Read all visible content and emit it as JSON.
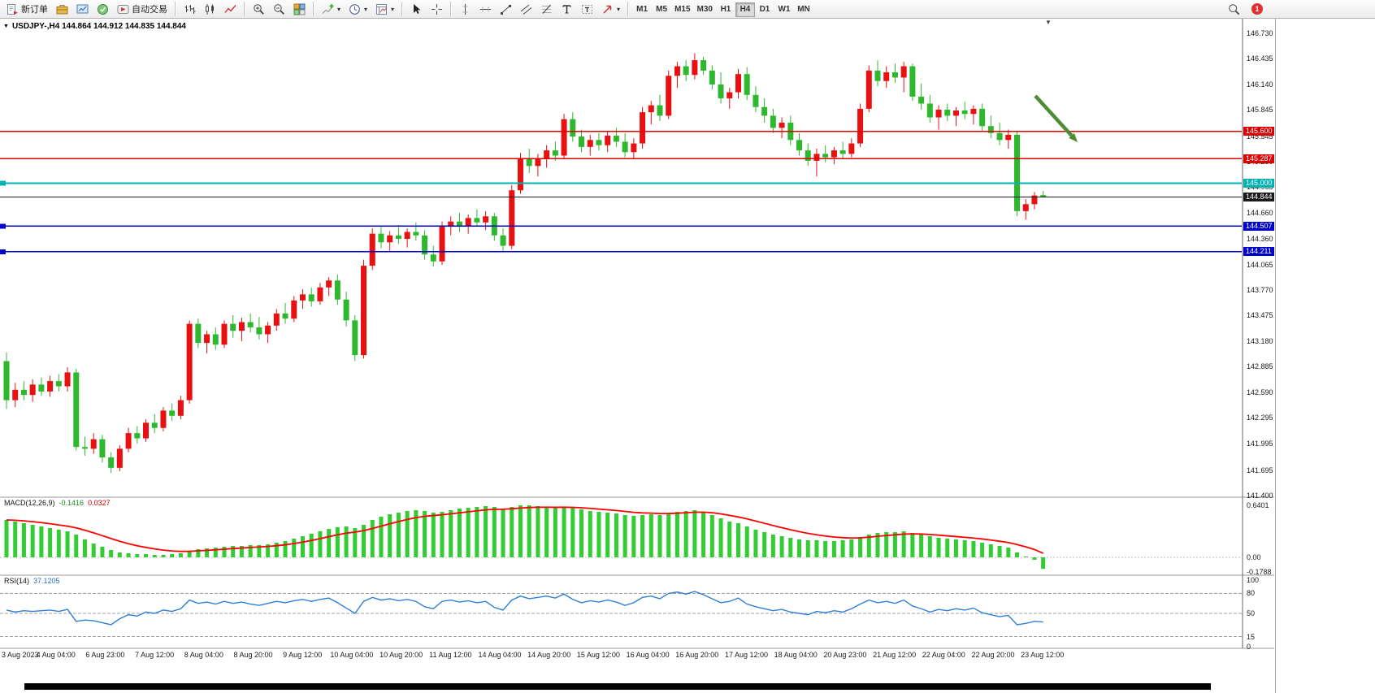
{
  "toolbar": {
    "new_order_label": "新订单",
    "auto_trading_label": "自动交易",
    "timeframes": [
      "M1",
      "M5",
      "M15",
      "M30",
      "H1",
      "H4",
      "D1",
      "W1",
      "MN"
    ],
    "active_timeframe": "H4",
    "notification_count": "1"
  },
  "chart": {
    "title": "USDJPY-,H4 144.864 144.912 144.835 144.844",
    "price_range": {
      "max": 146.73,
      "min": 141.4
    },
    "y_axis_labels": [
      "146.730",
      "146.435",
      "146.140",
      "145.845",
      "145.545",
      "145.250",
      "144.955",
      "144.660",
      "144.360",
      "144.065",
      "143.770",
      "143.475",
      "143.180",
      "142.885",
      "142.590",
      "142.295",
      "141.995",
      "141.695",
      "141.400"
    ],
    "x_axis_labels": [
      "3 Aug 2023",
      "4 Aug 04:00",
      "6 Aug 23:00",
      "7 Aug 12:00",
      "8 Aug 04:00",
      "8 Aug 20:00",
      "9 Aug 12:00",
      "10 Aug 04:00",
      "10 Aug 20:00",
      "11 Aug 12:00",
      "14 Aug 04:00",
      "14 Aug 20:00",
      "15 Aug 12:00",
      "16 Aug 04:00",
      "16 Aug 20:00",
      "17 Aug 12:00",
      "18 Aug 04:00",
      "20 Aug 23:00",
      "21 Aug 12:00",
      "22 Aug 04:00",
      "22 Aug 20:00",
      "23 Aug 12:00"
    ],
    "horizontal_lines": [
      {
        "label": "145.600",
        "price": 145.6,
        "color": "#dd0000",
        "width": 1.5
      },
      {
        "label": "145.287",
        "price": 145.287,
        "color": "#dd0000",
        "width": 1.5
      },
      {
        "label": "145.000",
        "price": 145.0,
        "color": "#00b3b3",
        "width": 2,
        "left_marker": true
      },
      {
        "label": "144.844",
        "price": 144.844,
        "color": "#1a1a1a",
        "width": 1
      },
      {
        "label": "144.507",
        "price": 144.507,
        "color": "#0000cc",
        "width": 1.5,
        "left_marker": true
      },
      {
        "label": "144.211",
        "price": 144.211,
        "color": "#0000cc",
        "width": 1.5,
        "left_marker": true
      }
    ],
    "bull_color": "#e81010",
    "bear_color": "#2eb82e",
    "annotation_arrow": {
      "color": "#4e8c33"
    },
    "candles": [
      [
        142.95,
        143.05,
        142.4,
        142.5
      ],
      [
        142.5,
        142.7,
        142.42,
        142.62
      ],
      [
        142.62,
        142.72,
        142.5,
        142.56
      ],
      [
        142.56,
        142.74,
        142.48,
        142.68
      ],
      [
        142.68,
        142.76,
        142.55,
        142.6
      ],
      [
        142.6,
        142.78,
        142.54,
        142.72
      ],
      [
        142.72,
        142.8,
        142.6,
        142.66
      ],
      [
        142.66,
        142.88,
        142.6,
        142.82
      ],
      [
        142.82,
        142.86,
        141.92,
        141.96
      ],
      [
        141.96,
        142.08,
        141.86,
        141.94
      ],
      [
        141.94,
        142.12,
        141.88,
        142.05
      ],
      [
        142.05,
        142.1,
        141.78,
        141.84
      ],
      [
        141.84,
        141.9,
        141.66,
        141.72
      ],
      [
        141.72,
        141.98,
        141.68,
        141.94
      ],
      [
        141.94,
        142.18,
        141.9,
        142.12
      ],
      [
        142.12,
        142.2,
        142.0,
        142.06
      ],
      [
        142.06,
        142.28,
        142.02,
        142.24
      ],
      [
        142.24,
        142.34,
        142.12,
        142.18
      ],
      [
        142.18,
        142.42,
        142.14,
        142.38
      ],
      [
        142.38,
        142.46,
        142.26,
        142.32
      ],
      [
        142.32,
        142.55,
        142.28,
        142.5
      ],
      [
        142.5,
        143.42,
        142.46,
        143.38
      ],
      [
        143.38,
        143.44,
        143.1,
        143.16
      ],
      [
        143.16,
        143.3,
        143.04,
        143.26
      ],
      [
        143.26,
        143.34,
        143.08,
        143.14
      ],
      [
        143.14,
        143.42,
        143.1,
        143.38
      ],
      [
        143.38,
        143.48,
        143.22,
        143.3
      ],
      [
        143.3,
        143.45,
        143.18,
        143.4
      ],
      [
        143.4,
        143.5,
        143.28,
        143.34
      ],
      [
        143.34,
        143.46,
        143.2,
        143.26
      ],
      [
        143.26,
        143.4,
        143.16,
        143.36
      ],
      [
        143.36,
        143.55,
        143.3,
        143.5
      ],
      [
        143.5,
        143.62,
        143.38,
        143.44
      ],
      [
        143.44,
        143.7,
        143.4,
        143.65
      ],
      [
        143.65,
        143.78,
        143.55,
        143.72
      ],
      [
        143.72,
        143.8,
        143.58,
        143.64
      ],
      [
        143.64,
        143.85,
        143.6,
        143.8
      ],
      [
        143.8,
        143.92,
        143.7,
        143.88
      ],
      [
        143.88,
        143.95,
        143.6,
        143.66
      ],
      [
        143.66,
        143.75,
        143.35,
        143.42
      ],
      [
        143.42,
        143.48,
        142.95,
        143.02
      ],
      [
        143.02,
        144.12,
        142.98,
        144.05
      ],
      [
        144.05,
        144.48,
        144.0,
        144.42
      ],
      [
        144.42,
        144.5,
        144.25,
        144.32
      ],
      [
        144.32,
        144.45,
        144.22,
        144.4
      ],
      [
        144.4,
        144.52,
        144.3,
        144.36
      ],
      [
        144.36,
        144.48,
        144.26,
        144.44
      ],
      [
        144.44,
        144.55,
        144.34,
        144.4
      ],
      [
        144.4,
        144.46,
        144.12,
        144.18
      ],
      [
        144.18,
        144.28,
        144.04,
        144.1
      ],
      [
        144.1,
        144.56,
        144.06,
        144.5
      ],
      [
        144.5,
        144.62,
        144.4,
        144.56
      ],
      [
        144.56,
        144.66,
        144.44,
        144.5
      ],
      [
        144.5,
        144.64,
        144.42,
        144.6
      ],
      [
        144.6,
        144.7,
        144.5,
        144.55
      ],
      [
        144.55,
        144.68,
        144.46,
        144.62
      ],
      [
        144.62,
        144.66,
        144.34,
        144.4
      ],
      [
        144.4,
        144.48,
        144.22,
        144.28
      ],
      [
        144.28,
        144.98,
        144.24,
        144.92
      ],
      [
        144.92,
        145.35,
        144.88,
        145.28
      ],
      [
        145.28,
        145.4,
        145.12,
        145.2
      ],
      [
        145.2,
        145.34,
        145.08,
        145.28
      ],
      [
        145.28,
        145.44,
        145.18,
        145.38
      ],
      [
        145.38,
        145.48,
        145.26,
        145.32
      ],
      [
        145.32,
        145.8,
        145.28,
        145.74
      ],
      [
        145.74,
        145.82,
        145.48,
        145.54
      ],
      [
        145.54,
        145.62,
        145.36,
        145.42
      ],
      [
        145.42,
        145.56,
        145.32,
        145.5
      ],
      [
        145.5,
        145.58,
        145.38,
        145.44
      ],
      [
        145.44,
        145.6,
        145.36,
        145.55
      ],
      [
        145.55,
        145.64,
        145.42,
        145.48
      ],
      [
        145.48,
        145.58,
        145.3,
        145.36
      ],
      [
        145.36,
        145.52,
        145.28,
        145.46
      ],
      [
        145.46,
        145.88,
        145.4,
        145.82
      ],
      [
        145.82,
        145.95,
        145.68,
        145.9
      ],
      [
        145.9,
        146.02,
        145.72,
        145.78
      ],
      [
        145.78,
        146.3,
        145.74,
        146.24
      ],
      [
        146.24,
        146.4,
        146.1,
        146.35
      ],
      [
        146.35,
        146.42,
        146.18,
        146.25
      ],
      [
        146.25,
        146.5,
        146.2,
        146.42
      ],
      [
        146.42,
        146.46,
        146.25,
        146.3
      ],
      [
        146.3,
        146.36,
        146.08,
        146.14
      ],
      [
        146.14,
        146.28,
        145.92,
        145.98
      ],
      [
        145.98,
        146.1,
        145.86,
        146.05
      ],
      [
        146.05,
        146.32,
        145.98,
        146.26
      ],
      [
        146.26,
        146.34,
        145.96,
        146.02
      ],
      [
        146.02,
        146.12,
        145.82,
        145.88
      ],
      [
        145.88,
        145.98,
        145.7,
        145.78
      ],
      [
        145.78,
        145.86,
        145.58,
        145.64
      ],
      [
        145.64,
        145.76,
        145.52,
        145.7
      ],
      [
        145.7,
        145.78,
        145.44,
        145.5
      ],
      [
        145.5,
        145.58,
        145.32,
        145.38
      ],
      [
        145.38,
        145.46,
        145.2,
        145.26
      ],
      [
        145.26,
        145.4,
        145.08,
        145.34
      ],
      [
        145.34,
        145.44,
        145.24,
        145.3
      ],
      [
        145.3,
        145.42,
        145.22,
        145.38
      ],
      [
        145.38,
        145.48,
        145.28,
        145.34
      ],
      [
        145.34,
        145.52,
        145.3,
        145.46
      ],
      [
        145.46,
        145.92,
        145.42,
        145.86
      ],
      [
        145.86,
        146.36,
        145.82,
        146.3
      ],
      [
        146.3,
        146.42,
        146.12,
        146.18
      ],
      [
        146.18,
        146.35,
        146.1,
        146.28
      ],
      [
        146.28,
        146.38,
        146.16,
        146.22
      ],
      [
        146.22,
        146.4,
        146.05,
        146.35
      ],
      [
        146.35,
        146.38,
        145.95,
        146.0
      ],
      [
        146.0,
        146.15,
        145.85,
        145.92
      ],
      [
        145.92,
        146.02,
        145.7,
        145.76
      ],
      [
        145.76,
        145.9,
        145.62,
        145.85
      ],
      [
        145.85,
        145.92,
        145.72,
        145.78
      ],
      [
        145.78,
        145.88,
        145.66,
        145.84
      ],
      [
        145.84,
        145.94,
        145.74,
        145.8
      ],
      [
        145.8,
        145.9,
        145.68,
        145.86
      ],
      [
        145.86,
        145.92,
        145.6,
        145.66
      ],
      [
        145.66,
        145.78,
        145.52,
        145.58
      ],
      [
        145.58,
        145.7,
        145.44,
        145.5
      ],
      [
        145.5,
        145.62,
        145.4,
        145.56
      ],
      [
        145.56,
        145.6,
        144.62,
        144.68
      ],
      [
        144.68,
        144.82,
        144.58,
        144.76
      ],
      [
        144.76,
        144.9,
        144.7,
        144.86
      ],
      [
        144.864,
        144.912,
        144.835,
        144.844
      ]
    ]
  },
  "macd": {
    "label": "MACD(12,26,9)",
    "value_main": "-0.1416",
    "value_signal": "0.0327",
    "histogram_color": "#32cd32",
    "signal_color": "#ff0000",
    "scale_labels": [
      {
        "text": "0.6401",
        "value": 0.6401
      },
      {
        "text": "0.00",
        "value": 0
      },
      {
        "text": "-0.1788",
        "value": -0.1788
      }
    ],
    "histogram": [
      0.46,
      0.44,
      0.42,
      0.4,
      0.38,
      0.36,
      0.34,
      0.32,
      0.28,
      0.22,
      0.17,
      0.13,
      0.09,
      0.06,
      0.05,
      0.04,
      0.04,
      0.03,
      0.03,
      0.04,
      0.05,
      0.08,
      0.1,
      0.11,
      0.12,
      0.13,
      0.14,
      0.14,
      0.15,
      0.15,
      0.16,
      0.18,
      0.2,
      0.23,
      0.26,
      0.29,
      0.32,
      0.35,
      0.37,
      0.38,
      0.36,
      0.4,
      0.46,
      0.5,
      0.53,
      0.55,
      0.57,
      0.58,
      0.57,
      0.55,
      0.56,
      0.58,
      0.6,
      0.61,
      0.62,
      0.63,
      0.62,
      0.6,
      0.62,
      0.64,
      0.64,
      0.63,
      0.62,
      0.61,
      0.62,
      0.61,
      0.59,
      0.57,
      0.56,
      0.55,
      0.54,
      0.52,
      0.51,
      0.52,
      0.53,
      0.52,
      0.54,
      0.56,
      0.57,
      0.58,
      0.56,
      0.52,
      0.48,
      0.44,
      0.42,
      0.38,
      0.34,
      0.31,
      0.28,
      0.26,
      0.24,
      0.22,
      0.21,
      0.21,
      0.2,
      0.2,
      0.21,
      0.22,
      0.25,
      0.28,
      0.3,
      0.31,
      0.31,
      0.32,
      0.3,
      0.28,
      0.26,
      0.24,
      0.23,
      0.22,
      0.21,
      0.2,
      0.18,
      0.16,
      0.14,
      0.12,
      0.06,
      0.01,
      -0.03,
      -0.1416
    ]
  },
  "rsi": {
    "label": "RSI(14)",
    "value": "37.1205",
    "line_color": "#2f7ed8",
    "levels": [
      {
        "text": "100",
        "value": 100
      },
      {
        "text": "80",
        "value": 80
      },
      {
        "text": "50",
        "value": 50
      },
      {
        "text": "15",
        "value": 15
      },
      {
        "text": "0",
        "value": 0
      }
    ],
    "dashed_levels": [
      80,
      50,
      15
    ],
    "series": [
      55,
      52,
      54,
      53,
      54,
      55,
      53,
      56,
      38,
      40,
      39,
      36,
      33,
      42,
      48,
      46,
      52,
      50,
      55,
      53,
      57,
      70,
      65,
      67,
      64,
      68,
      65,
      67,
      64,
      62,
      65,
      68,
      66,
      69,
      71,
      68,
      71,
      73,
      66,
      58,
      50,
      68,
      74,
      70,
      72,
      69,
      71,
      68,
      60,
      57,
      68,
      70,
      67,
      69,
      66,
      68,
      59,
      55,
      70,
      76,
      72,
      74,
      76,
      73,
      79,
      71,
      66,
      69,
      67,
      70,
      67,
      62,
      66,
      74,
      76,
      72,
      80,
      82,
      79,
      83,
      78,
      72,
      66,
      68,
      73,
      64,
      60,
      57,
      54,
      56,
      52,
      50,
      48,
      53,
      51,
      54,
      52,
      57,
      64,
      70,
      66,
      68,
      65,
      70,
      61,
      57,
      52,
      56,
      54,
      57,
      55,
      58,
      51,
      48,
      45,
      47,
      33,
      35,
      38,
      37.12
    ]
  }
}
